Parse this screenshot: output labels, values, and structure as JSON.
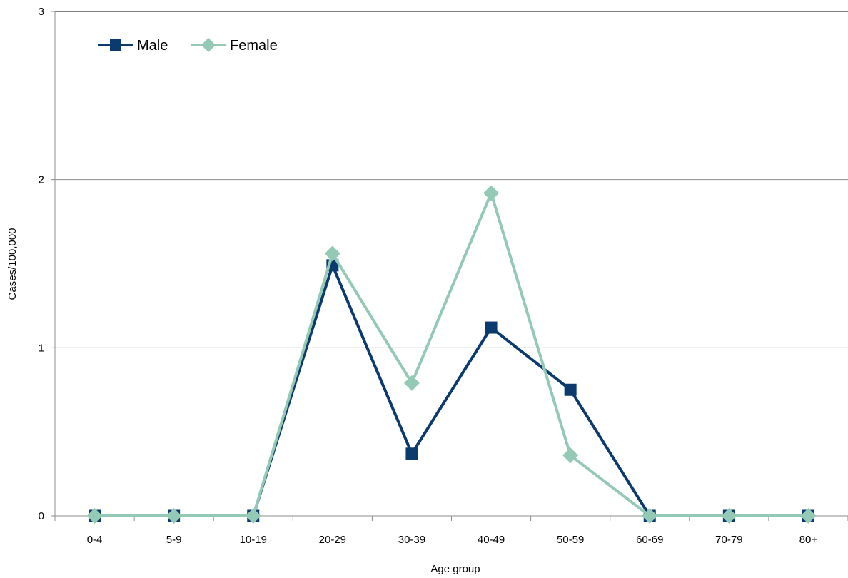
{
  "chart_data": {
    "type": "line",
    "title": "",
    "xlabel": "Age group",
    "ylabel": "Cases/100,000",
    "categories": [
      "0-4",
      "5-9",
      "10-19",
      "20-29",
      "30-39",
      "40-49",
      "50-59",
      "60-69",
      "70-79",
      "80+"
    ],
    "ylim": [
      0,
      3
    ],
    "yticks": [
      "0",
      "1",
      "2",
      "3"
    ],
    "grid": "horizontal",
    "legend_position": "top-left",
    "series": [
      {
        "name": "Male",
        "color": "#0b3a6e",
        "marker": "square",
        "values": [
          0,
          0,
          0,
          1.49,
          0.37,
          1.12,
          0.75,
          0,
          0,
          0
        ]
      },
      {
        "name": "Female",
        "color": "#93c9b5",
        "marker": "diamond",
        "values": [
          0,
          0,
          0,
          1.56,
          0.79,
          1.92,
          0.36,
          0,
          0,
          0
        ]
      }
    ]
  }
}
